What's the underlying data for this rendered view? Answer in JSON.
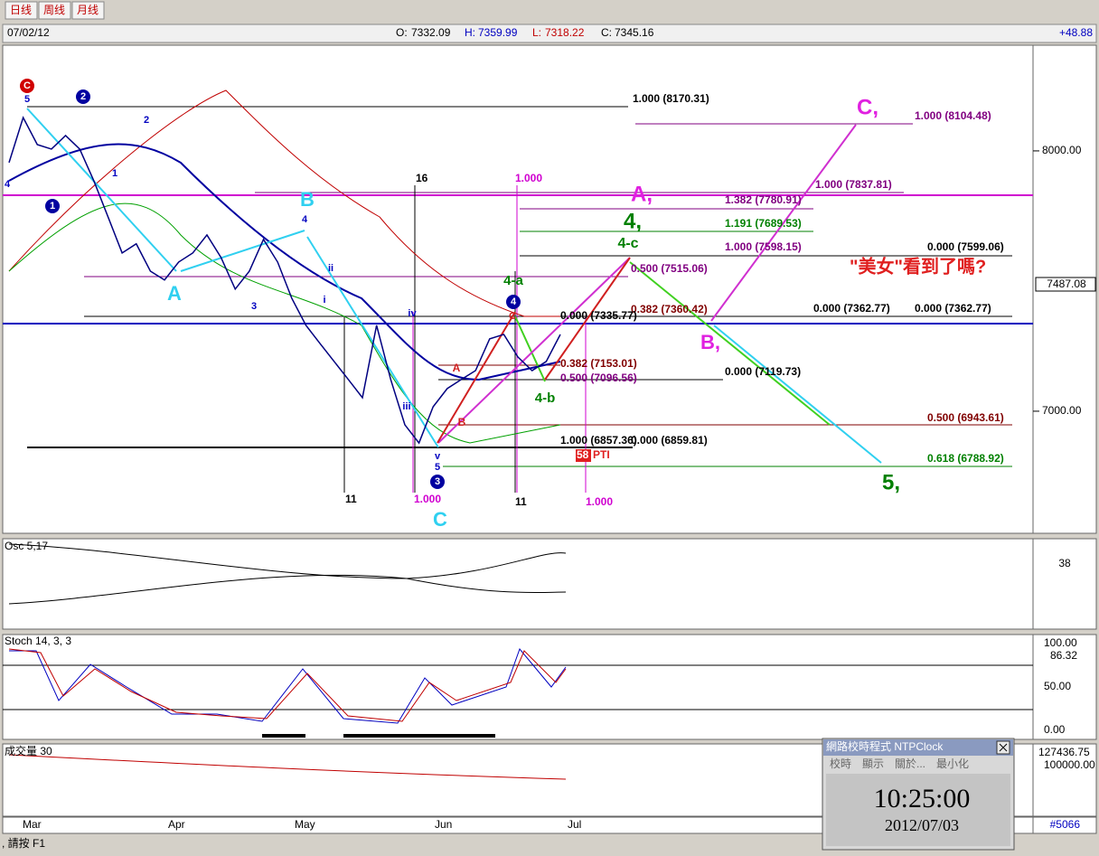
{
  "tabs": [
    "日线",
    "周线",
    "月线"
  ],
  "header": {
    "date": "07/02/12",
    "open_label": "O:",
    "open": "7332.09",
    "high_label": "H:",
    "high": "7359.99",
    "low_label": "L:",
    "low": "7318.22",
    "close_label": "C:",
    "close": "7345.16",
    "change": "+48.88"
  },
  "chart_data": {
    "type": "line",
    "color": "#000080",
    "values": [
      7955,
      8128,
      8024,
      8007,
      8059,
      8007,
      7885,
      7747,
      7608,
      7643,
      7538,
      7504,
      7573,
      7608,
      7677,
      7590,
      7469,
      7538,
      7660,
      7573,
      7434,
      7330,
      7260,
      7191,
      7122,
      7052,
      7330,
      7122,
      6948,
      6878,
      7017,
      7087,
      7122,
      7156,
      7278,
      7295,
      7208,
      7156,
      7191,
      7295
    ],
    "ylim": [
      6531,
      8406
    ],
    "yticks": [
      {
        "value": 8000,
        "label": "8000.00"
      },
      {
        "value": 7000,
        "label": "7000.00"
      }
    ],
    "last_label": "7487.08"
  },
  "annotations": [
    "1.000 (8170.31)",
    "1.000 (8104.48)",
    "1.000 (7837.81)",
    "1.382 (7780.91)",
    "1.191 (7689.53)",
    "1.000 (7598.15)",
    "0.000 (7599.06)",
    "0.500 (7515.06)",
    "0.382 (7360.42)",
    "0.000 (7362.77)",
    "0.000 (7362.77)",
    "0.000 (7335.77)",
    "0.382 (7153.01)",
    "0.500 (7096.56)",
    "0.000 (7119.73)",
    "0.500 (6943.61)",
    "1.000 (6857.36)",
    "0.000 (6859.81)",
    "0.618 (6788.92)",
    "1.000",
    "1.000",
    "1.000",
    "16",
    "11",
    "11",
    "C",
    "5",
    "2",
    "2",
    "1",
    "4",
    "1",
    "B",
    "4",
    "A",
    "3",
    "ii",
    "i",
    "iv",
    "iii",
    "v",
    "5",
    "3",
    "C",
    "4",
    "4-a",
    "4-b",
    "A",
    "B",
    "C",
    "A,",
    "4,",
    "4-c",
    "C,",
    "B,",
    "5,",
    "\"美女\"看到了嗎?",
    "58",
    "PTI"
  ],
  "osc": {
    "title": "Osc 5,17",
    "value": "38"
  },
  "stoch": {
    "title": "Stoch 14, 3, 3",
    "ticks": [
      "100.00",
      "86.32",
      "50.00",
      "0.00"
    ]
  },
  "volume": {
    "title": "成交量 30",
    "ticks": [
      "127436.75",
      "100000.00"
    ]
  },
  "months": [
    "Mar",
    "Apr",
    "May",
    "Jun",
    "Jul"
  ],
  "record": "#5066",
  "status": ", 請按 F1",
  "clock": {
    "title": "網路校時程式 NTPClock",
    "menu": [
      "校時",
      "顯示",
      "關於...",
      "最小化"
    ],
    "time": "10:25:00",
    "date": "2012/07/03"
  }
}
